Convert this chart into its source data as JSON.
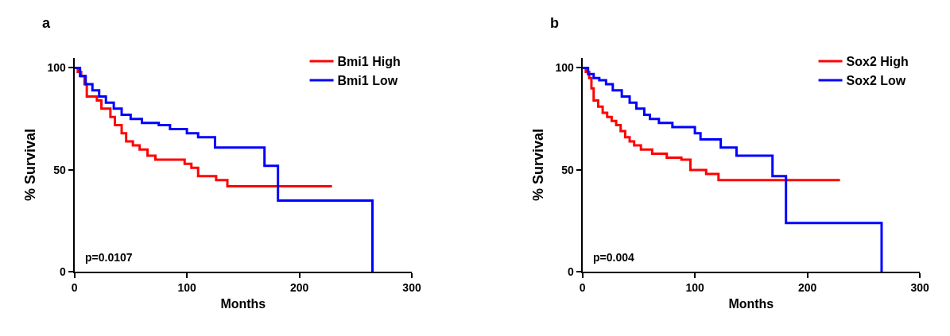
{
  "chart_data": [
    {
      "type": "step",
      "title": "a",
      "xlabel": "Months",
      "ylabel": "% Survival",
      "xlim": [
        0,
        300
      ],
      "xticks": [
        0,
        100,
        200,
        300
      ],
      "ylim": [
        0,
        105
      ],
      "yticks": [
        0,
        50,
        100
      ],
      "legend": "top right",
      "marker": "none",
      "line_style": "solid",
      "annotations": [
        "p=0.0107"
      ],
      "series": [
        {
          "name": "Bmi1 High",
          "color": "#ff0000",
          "x": [
            0,
            3,
            6,
            9,
            11,
            20,
            24,
            32,
            36,
            42,
            46,
            52,
            58,
            65,
            72,
            90,
            98,
            104,
            110,
            122,
            126,
            136,
            229
          ],
          "values": [
            100,
            98,
            96,
            92,
            86,
            84,
            80,
            76,
            72,
            68,
            64,
            62,
            60,
            57,
            55,
            55,
            53,
            51,
            47,
            47,
            45,
            42,
            42
          ]
        },
        {
          "name": "Bmi1 Low",
          "color": "#0000ff",
          "x": [
            0,
            5,
            10,
            16,
            22,
            28,
            35,
            42,
            50,
            60,
            75,
            85,
            100,
            110,
            125,
            169,
            181,
            265,
            265
          ],
          "values": [
            100,
            96,
            92,
            89,
            86,
            83,
            80,
            77,
            75,
            73,
            72,
            70,
            68,
            66,
            61,
            52,
            35,
            35,
            0
          ]
        }
      ]
    },
    {
      "type": "step",
      "title": "b",
      "xlabel": "Months",
      "ylabel": "% Survival",
      "xlim": [
        0,
        300
      ],
      "xticks": [
        0,
        100,
        200,
        300
      ],
      "ylim": [
        0,
        105
      ],
      "yticks": [
        0,
        50,
        100
      ],
      "legend": "top right",
      "marker": "none",
      "line_style": "solid",
      "annotations": [
        "p=0.004"
      ],
      "series": [
        {
          "name": "Sox2 High",
          "color": "#ff0000",
          "x": [
            0,
            3,
            6,
            8,
            10,
            14,
            18,
            22,
            26,
            30,
            34,
            38,
            42,
            46,
            52,
            62,
            75,
            88,
            96,
            110,
            121,
            229
          ],
          "values": [
            100,
            98,
            95,
            90,
            84,
            81,
            78,
            76,
            74,
            72,
            69,
            66,
            64,
            62,
            60,
            58,
            56,
            55,
            50,
            48,
            45,
            45
          ]
        },
        {
          "name": "Sox2 Low",
          "color": "#0000ff",
          "x": [
            0,
            5,
            10,
            15,
            21,
            27,
            35,
            42,
            48,
            55,
            60,
            68,
            80,
            100,
            105,
            123,
            137,
            169,
            181,
            266,
            266
          ],
          "values": [
            100,
            97,
            95,
            94,
            92,
            89,
            86,
            83,
            80,
            77,
            75,
            73,
            71,
            68,
            65,
            61,
            57,
            47,
            24,
            24,
            0
          ]
        }
      ]
    }
  ]
}
